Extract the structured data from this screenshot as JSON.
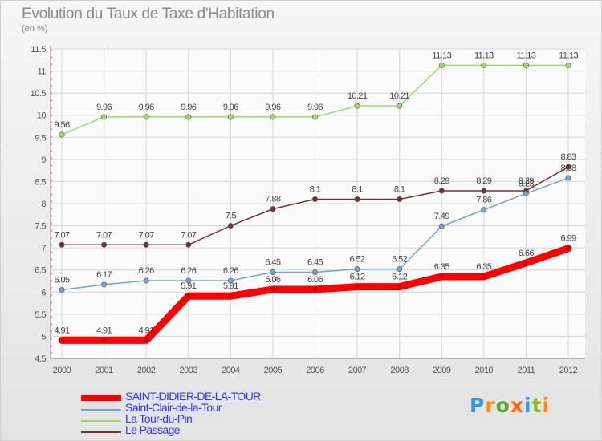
{
  "chart_data": {
    "type": "line",
    "title": "Evolution du Taux de Taxe d'Habitation",
    "subtitle": "(en %)",
    "x": [
      "2000",
      "2001",
      "2002",
      "2003",
      "2004",
      "2005",
      "2006",
      "2007",
      "2008",
      "2009",
      "2010",
      "2011",
      "2012"
    ],
    "ylim": [
      4.5,
      11.5
    ],
    "yticks": [
      "4.5",
      "5",
      "5.5",
      "6",
      "6.5",
      "7",
      "7.5",
      "8",
      "8.5",
      "9",
      "9.5",
      "10",
      "10.5",
      "11",
      "11.5"
    ],
    "grid": true,
    "legend_position": "bottom-left",
    "series": [
      {
        "name": "SAINT-DIDIER-DE-LA-TOUR",
        "color": "#ff0000",
        "values": [
          4.91,
          4.91,
          4.91,
          5.91,
          5.91,
          6.06,
          6.06,
          6.12,
          6.12,
          6.35,
          6.35,
          6.66,
          6.99
        ]
      },
      {
        "name": "Saint-Clair-de-la-Tour",
        "color": "#6fa4d4",
        "values": [
          6.05,
          6.17,
          6.26,
          6.26,
          6.26,
          6.45,
          6.45,
          6.52,
          6.52,
          7.49,
          7.86,
          8.23,
          8.58
        ]
      },
      {
        "name": "La Tour-du-Pin",
        "color": "#99dd66",
        "values": [
          9.56,
          9.96,
          9.96,
          9.96,
          9.96,
          9.96,
          9.96,
          10.21,
          10.21,
          11.13,
          11.13,
          11.13,
          11.13
        ]
      },
      {
        "name": "Le Passage",
        "color": "#7b3030",
        "values": [
          7.07,
          7.07,
          7.07,
          7.07,
          7.5,
          7.88,
          8.1,
          8.1,
          8.1,
          8.29,
          8.29,
          8.29,
          8.83
        ]
      }
    ],
    "labels": [
      [
        "4.91",
        "4.91",
        "4.91",
        "5.91",
        "5.91",
        "6.06",
        "6.06",
        "6.12",
        "6.12",
        "6.35",
        "6.35",
        "6.66",
        "6.99"
      ],
      [
        "6.05",
        "6.17",
        "6.26",
        "6.26",
        "6.26",
        "6.45",
        "6.45",
        "6.52",
        "6.52",
        "7.49",
        "7.86",
        "8.23",
        "8.58"
      ],
      [
        "9.56",
        "9.96",
        "9.96",
        "9.96",
        "9.96",
        "9.96",
        "9.96",
        "10.21",
        "10.21",
        "11.13",
        "11.13",
        "11.13",
        "11.13"
      ],
      [
        "7.07",
        "7.07",
        "7.07",
        "7.07",
        "7.5",
        "7.88",
        "8.1",
        "8.1",
        "8.1",
        "8.29",
        "8.29",
        "8.29",
        "8.83"
      ]
    ]
  },
  "legend": {
    "items": [
      "SAINT-DIDIER-DE-LA-TOUR",
      "Saint-Clair-de-la-Tour",
      "La Tour-du-Pin",
      "Le Passage"
    ],
    "label_colors": [
      "#3333ff",
      "#3333ff",
      "#3333ff",
      "#3333ff"
    ]
  },
  "logo": {
    "letters": [
      "P",
      "r",
      "o",
      "x",
      "i",
      "t",
      "i"
    ],
    "colors": [
      "#3399dd",
      "#ff8800",
      "#55aa33",
      "#ff6600",
      "#3399dd",
      "#88bb22",
      "#ff8800"
    ]
  }
}
